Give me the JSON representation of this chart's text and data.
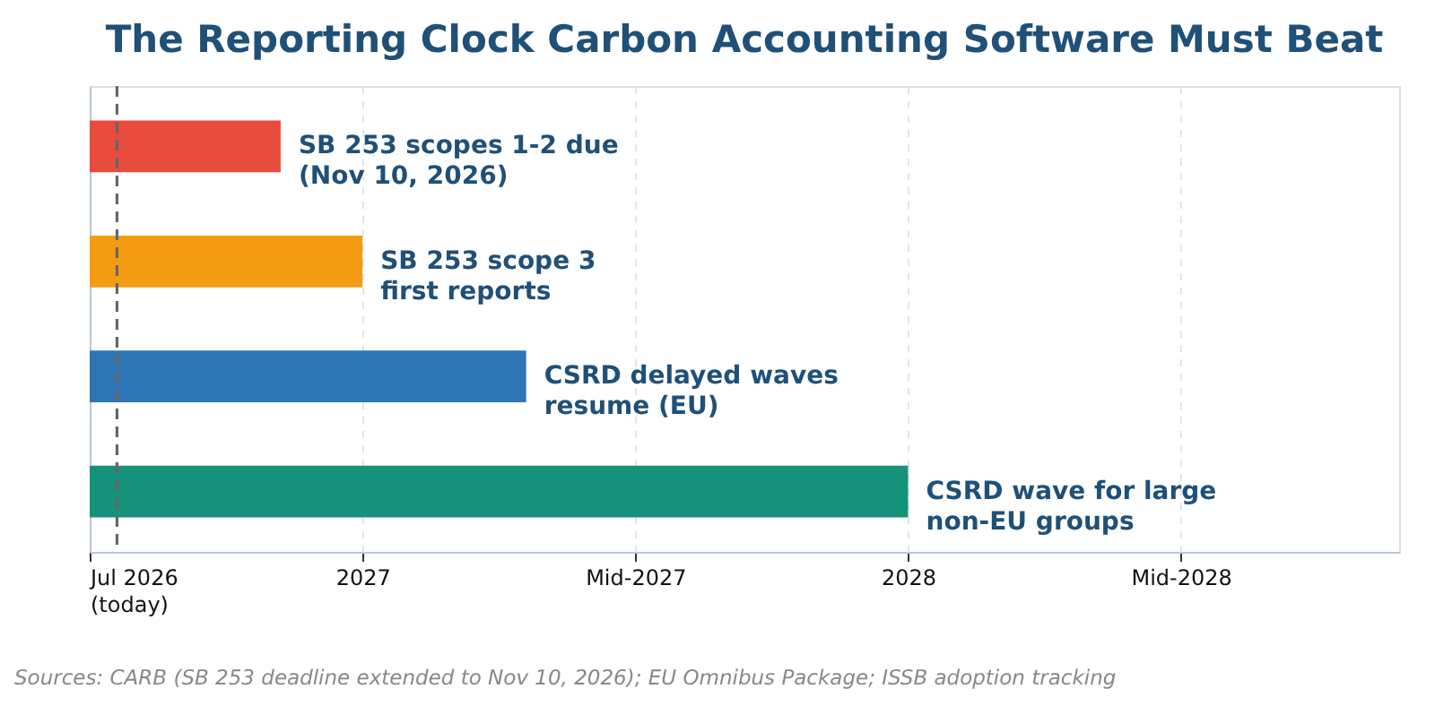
{
  "chart_data": {
    "type": "bar",
    "orientation": "horizontal",
    "title": "The Reporting Clock Carbon Accounting Software Must Beat",
    "categories": [
      "SB 253 scopes 1-2 due\n(Nov 10, 2026)",
      "SB 253 scope 3\nfirst reports",
      "CSRD delayed waves\nresume (EU)",
      "CSRD wave for large\nnon-EU groups"
    ],
    "values": [
      2026.85,
      2027.0,
      2027.3,
      2028.0
    ],
    "colors": [
      "#e74c3c",
      "#f39c12",
      "#2e75b6",
      "#16917a"
    ],
    "xlim": [
      2026.5,
      2028.9
    ],
    "xticks": [
      {
        "value": 2026.5,
        "label": "Jul 2026\n(today)"
      },
      2027,
      {
        "value": 2027.5,
        "label": "Mid-2027"
      },
      2028,
      {
        "value": 2028.5,
        "label": "Mid-2028"
      }
    ],
    "ref_lines": [
      {
        "axis": "x",
        "value": 2026.55,
        "color": "#666666",
        "line_style": "dashed"
      }
    ],
    "grid": "x",
    "tick_labels": "x",
    "annotations": [
      "Sources: CARB (SB 253 deadline extended to Nov 10, 2026); EU Omnibus Package; ISSB adoption tracking"
    ]
  }
}
